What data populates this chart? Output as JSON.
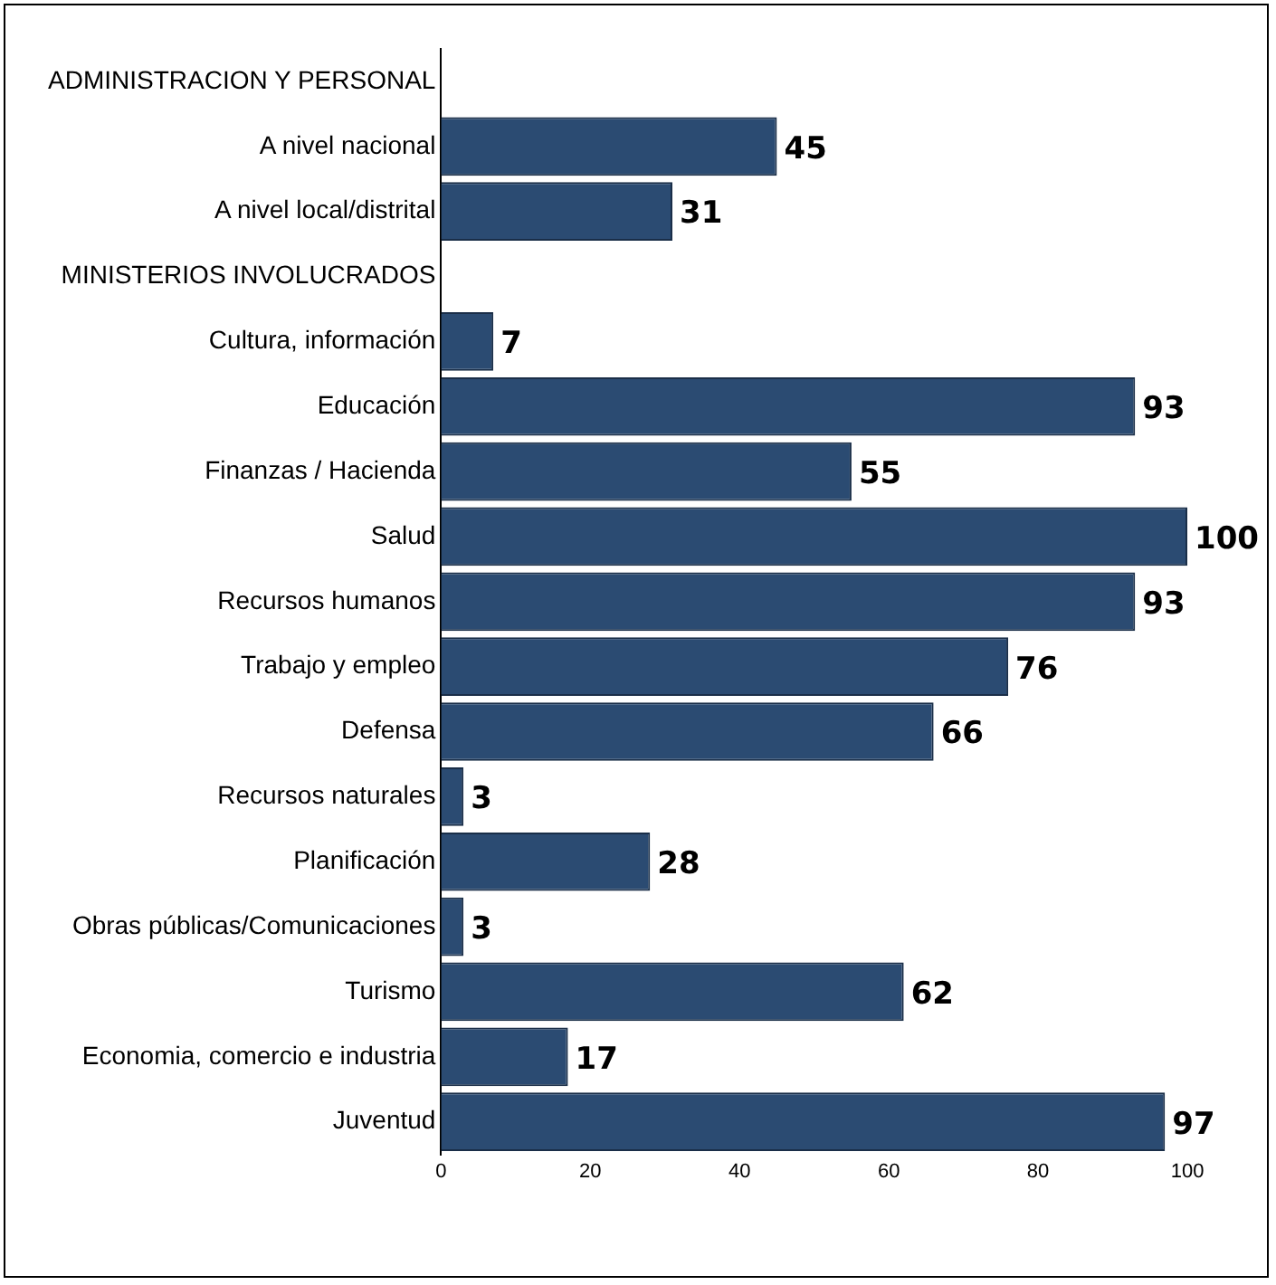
{
  "chart_data": {
    "type": "bar",
    "orientation": "horizontal",
    "categories": [
      "ADMINISTRACION Y PERSONAL",
      "A nivel nacional",
      "A nivel local/distrital",
      "MINISTERIOS INVOLUCRADOS",
      "Cultura, información",
      "Educación",
      "Finanzas / Hacienda",
      "Salud",
      "Recursos humanos",
      "Trabajo y empleo",
      "Defensa",
      "Recursos naturales",
      "Planificación",
      "Obras públicas/Comunicaciones",
      "Turismo",
      "Economia, comercio e industria",
      "Juventud"
    ],
    "values": [
      null,
      45,
      31,
      null,
      7,
      93,
      55,
      100,
      93,
      76,
      66,
      3,
      28,
      3,
      62,
      17,
      97
    ],
    "color": "#2b4b72",
    "xlim": [
      0,
      100
    ],
    "xticks": [
      0,
      20,
      40,
      60,
      80,
      100
    ],
    "grid": false,
    "legend": false,
    "data_labels": true
  }
}
